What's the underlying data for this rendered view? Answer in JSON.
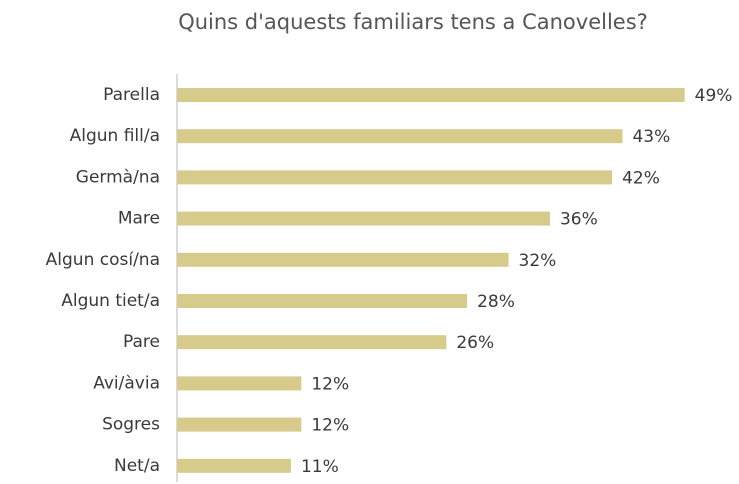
{
  "chart_data": {
    "type": "bar",
    "orientation": "horizontal",
    "title": "Quins d'aquests familiars tens a Canovelles?",
    "categories": [
      "Parella",
      "Algun fill/a",
      "Germà/na",
      "Mare",
      "Algun cosí/na",
      "Algun tiet/a",
      "Pare",
      "Avi/àvia",
      "Sogres",
      "Net/a"
    ],
    "values": [
      49,
      43,
      42,
      36,
      32,
      28,
      26,
      12,
      12,
      11
    ],
    "value_labels": [
      "49%",
      "43%",
      "42%",
      "36%",
      "32%",
      "28%",
      "26%",
      "12%",
      "12%",
      "11%"
    ],
    "color": "#d6cb8b",
    "xlim": [
      0,
      50
    ]
  }
}
